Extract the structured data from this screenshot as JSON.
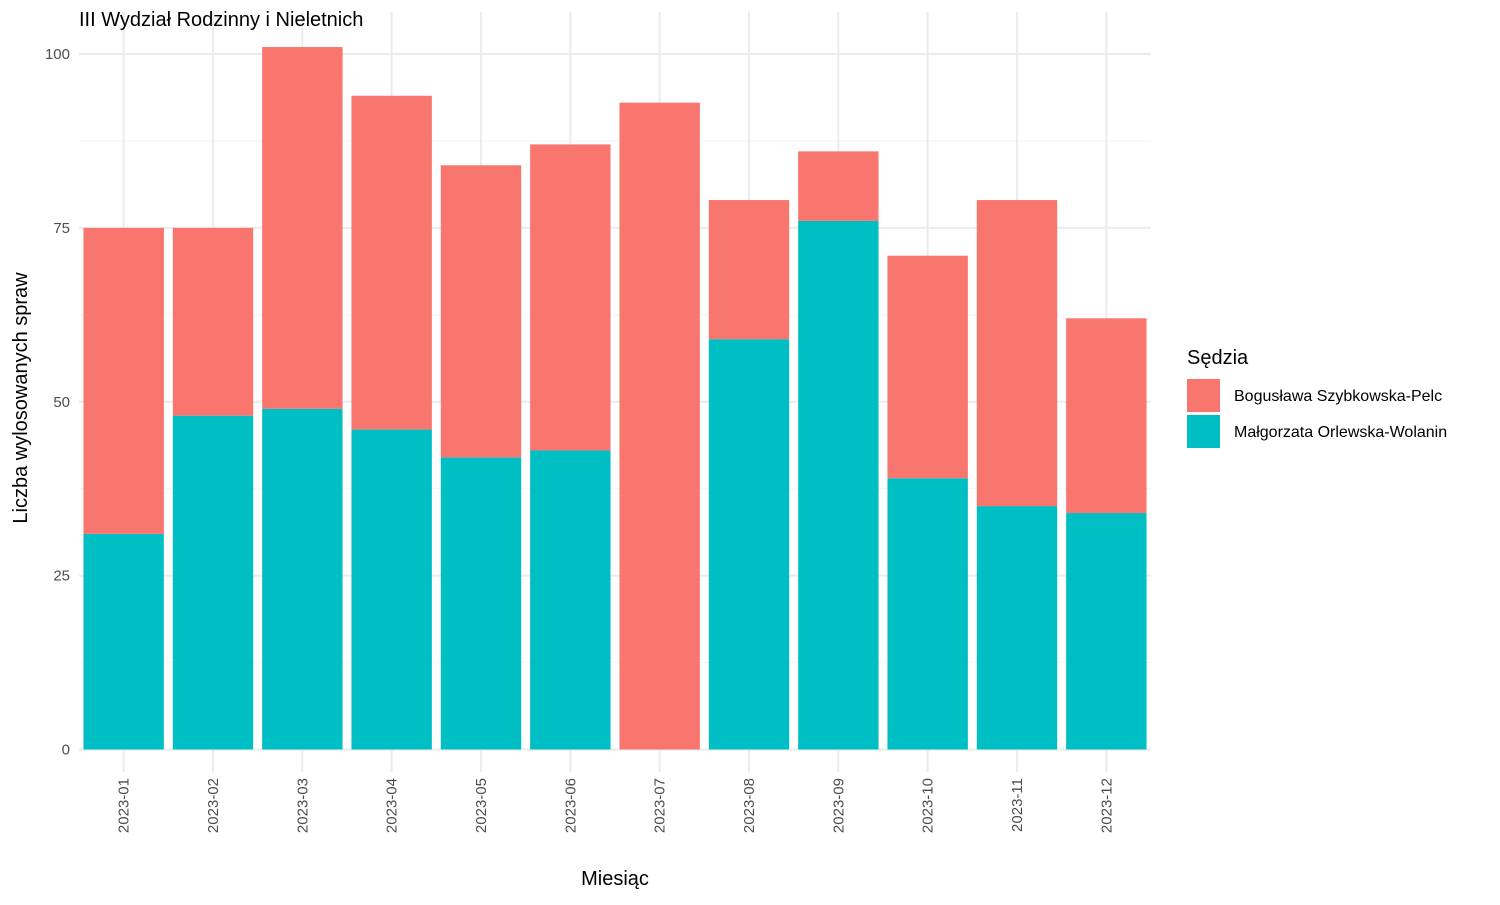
{
  "chart_data": {
    "type": "bar",
    "stacked": true,
    "title": "III Wydział Rodzinny i Nieletnich",
    "xlabel": "Miesiąc",
    "ylabel": "Liczba wylosowanych spraw",
    "ylim": [
      0,
      101
    ],
    "yticks": [
      0,
      25,
      50,
      75,
      100
    ],
    "grid": true,
    "legend": {
      "title": "Sędzia",
      "position": "right"
    },
    "categories": [
      "2023-01",
      "2023-02",
      "2023-03",
      "2023-04",
      "2023-05",
      "2023-06",
      "2023-07",
      "2023-08",
      "2023-09",
      "2023-10",
      "2023-11",
      "2023-12"
    ],
    "series": [
      {
        "name": "Bogusława Szybkowska-Pelc",
        "color": "#F8766D",
        "values": [
          44,
          27,
          52,
          48,
          42,
          44,
          93,
          20,
          10,
          32,
          44,
          28
        ]
      },
      {
        "name": "Małgorzata Orlewska-Wolanin",
        "color": "#00BFC4",
        "values": [
          31,
          48,
          49,
          46,
          42,
          43,
          0,
          59,
          76,
          39,
          35,
          34
        ]
      }
    ]
  }
}
